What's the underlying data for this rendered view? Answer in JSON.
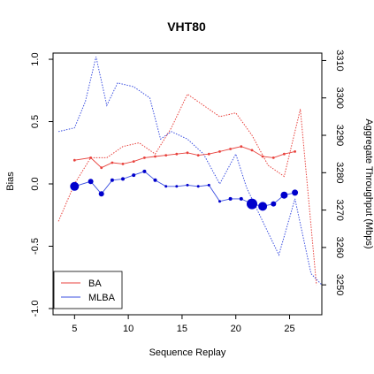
{
  "chart_data": {
    "type": "line",
    "title": "VHT80",
    "xlabel": "Sequence Replay",
    "ylabel_left": "Bias",
    "ylabel_right": "Aggregate Throughput (Mbps)",
    "xlim": [
      3,
      28
    ],
    "ylim_left": [
      -1.05,
      1.05
    ],
    "ylim_right": [
      3242,
      3312
    ],
    "x_ticks": [
      "5",
      "10",
      "15",
      "20",
      "25"
    ],
    "y_left_ticks": [
      "-1.0",
      "-0.5",
      "0.0",
      "0.5",
      "1.0"
    ],
    "y_right_ticks": [
      "3250",
      "3260",
      "3270",
      "3280",
      "3290",
      "3300",
      "3310"
    ],
    "legend": {
      "position": "bottom-left",
      "entries": [
        "BA",
        "MLBA"
      ]
    },
    "colors": {
      "BA": "#e8413c",
      "MLBA": "#3b4fe0",
      "markers": "#0000cc",
      "axis": "#000000"
    },
    "series": [
      {
        "name": "BA",
        "axis": "right",
        "style": "dotted",
        "x": [
          3.5,
          5,
          6.5,
          8,
          9.5,
          11,
          12.5,
          14,
          15.5,
          17,
          18.5,
          20,
          21.5,
          23,
          24.5,
          26,
          27.5
        ],
        "values": [
          3267,
          3277,
          3284,
          3284,
          3287,
          3288,
          3285,
          3292,
          3301,
          3298,
          3295,
          3296,
          3290,
          3282,
          3279,
          3297,
          3250
        ]
      },
      {
        "name": "MLBA",
        "axis": "right",
        "style": "dotted",
        "x": [
          3.5,
          5,
          6,
          7,
          8,
          9,
          10.5,
          12,
          13,
          14,
          15.5,
          17,
          18.5,
          20,
          21,
          22.5,
          24,
          25.5,
          27,
          28
        ],
        "values": [
          3291,
          3292,
          3299,
          3311,
          3298,
          3304,
          3303,
          3300,
          3289,
          3291,
          3289,
          3285,
          3277,
          3285,
          3276,
          3267,
          3258,
          3273,
          3253,
          3250
        ]
      },
      {
        "name": "BA",
        "axis": "left",
        "style": "solid",
        "x": [
          5,
          6.5,
          7.5,
          8.5,
          9.5,
          10.5,
          11.5,
          12.5,
          13.5,
          14.5,
          15.5,
          16.5,
          17.5,
          18.5,
          19.5,
          20.5,
          21.5,
          22.5,
          23.5,
          24.5,
          25.5
        ],
        "values": [
          0.19,
          0.21,
          0.13,
          0.17,
          0.16,
          0.18,
          0.21,
          0.22,
          0.23,
          0.24,
          0.25,
          0.23,
          0.24,
          0.26,
          0.28,
          0.3,
          0.27,
          0.22,
          0.21,
          0.24,
          0.26
        ]
      },
      {
        "name": "MLBA",
        "axis": "left",
        "style": "solid",
        "x": [
          5,
          6.5,
          7.5,
          8.5,
          9.5,
          10.5,
          11.5,
          12.5,
          13.5,
          14.5,
          15.5,
          16.5,
          17.5,
          18.5,
          19.5,
          20.5,
          21.5,
          22.5,
          23.5,
          24.5,
          25.5
        ],
        "values": [
          -0.02,
          0.02,
          -0.08,
          0.03,
          0.04,
          0.07,
          0.1,
          0.03,
          -0.02,
          -0.02,
          -0.01,
          -0.02,
          -0.01,
          -0.14,
          -0.12,
          -0.12,
          -0.16,
          -0.18,
          -0.16,
          -0.09,
          -0.07
        ],
        "marker_sizes": [
          5,
          3,
          3,
          2,
          2,
          2,
          2,
          2,
          1.5,
          1.5,
          1.5,
          1.5,
          1.5,
          1.5,
          2,
          2,
          6,
          5,
          3,
          4,
          3.5
        ]
      }
    ]
  }
}
